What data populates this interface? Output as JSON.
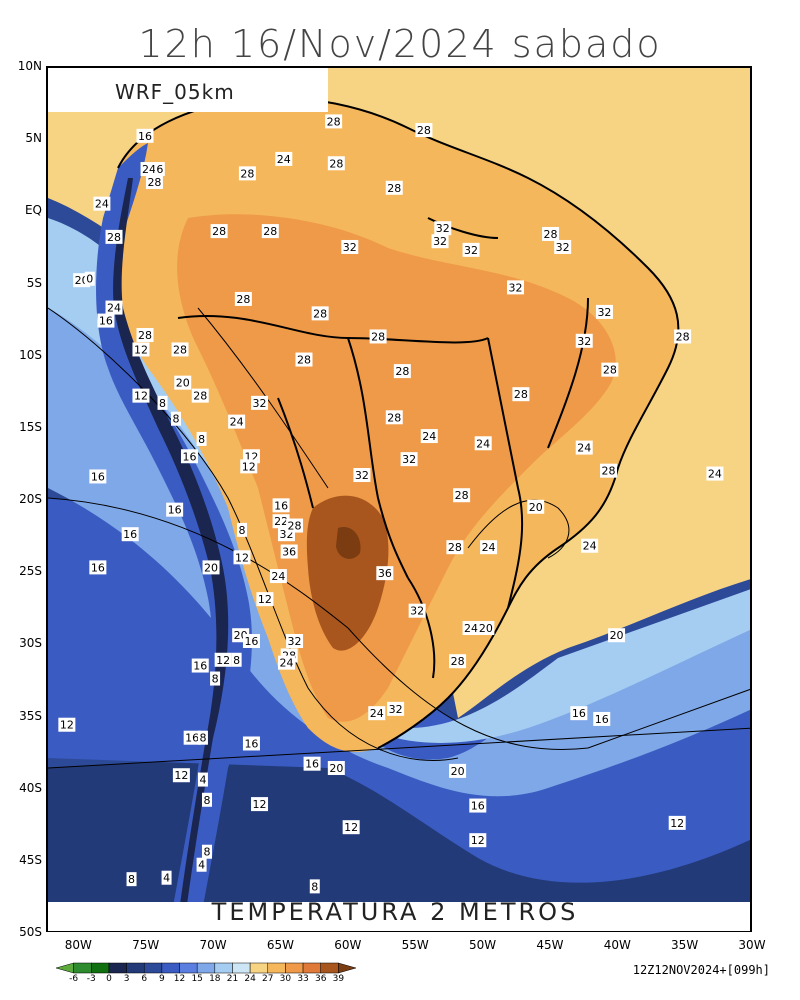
{
  "title": "12h 16/Nov/2024 sabado",
  "model": "WRF_05km",
  "variable": "TEMPERATURA 2 METROS",
  "init_info": "12Z12NOV2024+[099h]",
  "lat_labels": [
    "10N",
    "5N",
    "EQ",
    "5S",
    "10S",
    "15S",
    "20S",
    "25S",
    "30S",
    "35S",
    "40S",
    "45S",
    "50S"
  ],
  "lon_labels": [
    "80W",
    "75W",
    "70W",
    "65W",
    "60W",
    "55W",
    "50W",
    "45W",
    "40W",
    "35W",
    "30W"
  ],
  "colorbar": {
    "ticks": [
      "-6",
      "-3",
      "0",
      "3",
      "6",
      "9",
      "12",
      "15",
      "18",
      "21",
      "24",
      "27",
      "30",
      "33",
      "36",
      "39"
    ],
    "colors": [
      "#5daa3c",
      "#2e8b2e",
      "#107010",
      "#1a2550",
      "#233a78",
      "#2d4a99",
      "#3a5cc2",
      "#5b7fe0",
      "#7fa8e8",
      "#a5cdf2",
      "#cce6f5",
      "#f7d483",
      "#f5b75b",
      "#ef9a48",
      "#e07a3a",
      "#a8561e",
      "#7a3c10"
    ]
  },
  "contour_labels": [
    {
      "t": "16",
      "lon": -75.2,
      "lat": 5.3
    },
    {
      "t": "24",
      "lon": -74.9,
      "lat": 3.0
    },
    {
      "t": "6",
      "lon": -74.1,
      "lat": 3.0
    },
    {
      "t": "28",
      "lon": -74.5,
      "lat": 2.1
    },
    {
      "t": "24",
      "lon": -78.4,
      "lat": 0.6
    },
    {
      "t": "28",
      "lon": -77.5,
      "lat": -1.7
    },
    {
      "t": "20",
      "lon": -79.9,
      "lat": -4.7
    },
    {
      "t": "0",
      "lon": -79.3,
      "lat": -4.6
    },
    {
      "t": "24",
      "lon": -77.5,
      "lat": -6.6
    },
    {
      "t": "16",
      "lon": -78.1,
      "lat": -7.5
    },
    {
      "t": "28",
      "lon": -75.2,
      "lat": -8.5
    },
    {
      "t": "12",
      "lon": -75.5,
      "lat": -9.5
    },
    {
      "t": "28",
      "lon": -72.6,
      "lat": -9.5
    },
    {
      "t": "20",
      "lon": -72.4,
      "lat": -11.8
    },
    {
      "t": "28",
      "lon": -71.1,
      "lat": -12.7
    },
    {
      "t": "12",
      "lon": -75.5,
      "lat": -12.7
    },
    {
      "t": "8",
      "lon": -73.9,
      "lat": -13.2
    },
    {
      "t": "8",
      "lon": -72.9,
      "lat": -14.3
    },
    {
      "t": "24",
      "lon": -68.4,
      "lat": -14.5
    },
    {
      "t": "32",
      "lon": -66.7,
      "lat": -13.2
    },
    {
      "t": "8",
      "lon": -71.0,
      "lat": -15.7
    },
    {
      "t": "16",
      "lon": -71.9,
      "lat": -16.9
    },
    {
      "t": "12",
      "lon": -67.3,
      "lat": -16.9
    },
    {
      "t": "12",
      "lon": -67.5,
      "lat": -17.6
    },
    {
      "t": "16",
      "lon": -78.7,
      "lat": -18.3
    },
    {
      "t": "16",
      "lon": -73.0,
      "lat": -20.6
    },
    {
      "t": "16",
      "lon": -76.3,
      "lat": -22.3
    },
    {
      "t": "16",
      "lon": -78.7,
      "lat": -24.6
    },
    {
      "t": "16",
      "lon": -65.1,
      "lat": -20.3
    },
    {
      "t": "22",
      "lon": -65.1,
      "lat": -21.4
    },
    {
      "t": "32",
      "lon": -64.7,
      "lat": -22.3
    },
    {
      "t": "8",
      "lon": -68.0,
      "lat": -22.0
    },
    {
      "t": "28",
      "lon": -64.1,
      "lat": -21.7
    },
    {
      "t": "36",
      "lon": -64.5,
      "lat": -23.5
    },
    {
      "t": "12",
      "lon": -68.0,
      "lat": -23.9
    },
    {
      "t": "20",
      "lon": -70.3,
      "lat": -24.6
    },
    {
      "t": "24",
      "lon": -65.3,
      "lat": -25.2
    },
    {
      "t": "12",
      "lon": -66.3,
      "lat": -26.8
    },
    {
      "t": "20",
      "lon": -68.1,
      "lat": -29.3
    },
    {
      "t": "16",
      "lon": -67.3,
      "lat": -29.7
    },
    {
      "t": "32",
      "lon": -64.1,
      "lat": -29.7
    },
    {
      "t": "28",
      "lon": -64.5,
      "lat": -30.7
    },
    {
      "t": "24",
      "lon": -64.7,
      "lat": -31.2
    },
    {
      "t": "12",
      "lon": -69.4,
      "lat": -31.0
    },
    {
      "t": "8",
      "lon": -68.4,
      "lat": -31.0
    },
    {
      "t": "16",
      "lon": -71.1,
      "lat": -31.4
    },
    {
      "t": "8",
      "lon": -70.0,
      "lat": -32.3
    },
    {
      "t": "12",
      "lon": -81.0,
      "lat": -35.5
    },
    {
      "t": "16",
      "lon": -71.7,
      "lat": -36.4
    },
    {
      "t": "8",
      "lon": -70.9,
      "lat": -36.4
    },
    {
      "t": "16",
      "lon": -67.3,
      "lat": -36.8
    },
    {
      "t": "16",
      "lon": -62.8,
      "lat": -38.2
    },
    {
      "t": "20",
      "lon": -61.0,
      "lat": -38.5
    },
    {
      "t": "12",
      "lon": -72.5,
      "lat": -39.0
    },
    {
      "t": "4",
      "lon": -70.9,
      "lat": -39.3
    },
    {
      "t": "8",
      "lon": -70.6,
      "lat": -40.7
    },
    {
      "t": "12",
      "lon": -66.7,
      "lat": -41.0
    },
    {
      "t": "12",
      "lon": -59.9,
      "lat": -42.6
    },
    {
      "t": "8",
      "lon": -70.6,
      "lat": -44.3
    },
    {
      "t": "4",
      "lon": -71.0,
      "lat": -45.2
    },
    {
      "t": "4",
      "lon": -73.6,
      "lat": -46.1
    },
    {
      "t": "8",
      "lon": -76.2,
      "lat": -46.2
    },
    {
      "t": "8",
      "lon": -62.6,
      "lat": -46.7
    },
    {
      "t": "28",
      "lon": -61.2,
      "lat": 6.3
    },
    {
      "t": "24",
      "lon": -64.9,
      "lat": 3.7
    },
    {
      "t": "28",
      "lon": -61.0,
      "lat": 3.4
    },
    {
      "t": "28",
      "lon": -67.6,
      "lat": 2.7
    },
    {
      "t": "28",
      "lon": -54.5,
      "lat": 5.7
    },
    {
      "t": "28",
      "lon": -56.7,
      "lat": 1.7
    },
    {
      "t": "28",
      "lon": -69.7,
      "lat": -1.3
    },
    {
      "t": "28",
      "lon": -65.9,
      "lat": -1.3
    },
    {
      "t": "32",
      "lon": -60.0,
      "lat": -2.4
    },
    {
      "t": "32",
      "lon": -53.1,
      "lat": -1.1
    },
    {
      "t": "32",
      "lon": -53.3,
      "lat": -2.0
    },
    {
      "t": "32",
      "lon": -51.0,
      "lat": -2.6
    },
    {
      "t": "28",
      "lon": -45.1,
      "lat": -1.5
    },
    {
      "t": "32",
      "lon": -44.2,
      "lat": -2.4
    },
    {
      "t": "32",
      "lon": -47.7,
      "lat": -5.2
    },
    {
      "t": "28",
      "lon": -67.9,
      "lat": -6.0
    },
    {
      "t": "28",
      "lon": -62.2,
      "lat": -7.0
    },
    {
      "t": "32",
      "lon": -41.1,
      "lat": -6.9
    },
    {
      "t": "28",
      "lon": -35.3,
      "lat": -8.6
    },
    {
      "t": "28",
      "lon": -57.9,
      "lat": -8.6
    },
    {
      "t": "32",
      "lon": -42.6,
      "lat": -8.9
    },
    {
      "t": "28",
      "lon": -63.4,
      "lat": -10.2
    },
    {
      "t": "28",
      "lon": -56.1,
      "lat": -11.0
    },
    {
      "t": "28",
      "lon": -40.7,
      "lat": -10.9
    },
    {
      "t": "28",
      "lon": -47.3,
      "lat": -12.6
    },
    {
      "t": "28",
      "lon": -56.7,
      "lat": -14.2
    },
    {
      "t": "24",
      "lon": -54.1,
      "lat": -15.5
    },
    {
      "t": "24",
      "lon": -50.1,
      "lat": -16.0
    },
    {
      "t": "24",
      "lon": -42.6,
      "lat": -16.3
    },
    {
      "t": "32",
      "lon": -55.6,
      "lat": -17.1
    },
    {
      "t": "32",
      "lon": -59.1,
      "lat": -18.2
    },
    {
      "t": "28",
      "lon": -40.8,
      "lat": -17.9
    },
    {
      "t": "24",
      "lon": -32.9,
      "lat": -18.1
    },
    {
      "t": "28",
      "lon": -51.7,
      "lat": -19.6
    },
    {
      "t": "20",
      "lon": -46.2,
      "lat": -20.4
    },
    {
      "t": "28",
      "lon": -52.2,
      "lat": -23.2
    },
    {
      "t": "24",
      "lon": -49.7,
      "lat": -23.2
    },
    {
      "t": "24",
      "lon": -42.2,
      "lat": -23.1
    },
    {
      "t": "36",
      "lon": -57.4,
      "lat": -25.0
    },
    {
      "t": "32",
      "lon": -55.0,
      "lat": -27.6
    },
    {
      "t": "24",
      "lon": -51.0,
      "lat": -28.8
    },
    {
      "t": "20",
      "lon": -49.9,
      "lat": -28.8
    },
    {
      "t": "20",
      "lon": -40.2,
      "lat": -29.3
    },
    {
      "t": "28",
      "lon": -52.0,
      "lat": -31.1
    },
    {
      "t": "24",
      "lon": -58.0,
      "lat": -34.7
    },
    {
      "t": "32",
      "lon": -56.6,
      "lat": -34.4
    },
    {
      "t": "16",
      "lon": -43.0,
      "lat": -34.7
    },
    {
      "t": "16",
      "lon": -41.3,
      "lat": -35.1
    },
    {
      "t": "20",
      "lon": -52.0,
      "lat": -38.7
    },
    {
      "t": "16",
      "lon": -50.5,
      "lat": -41.1
    },
    {
      "t": "12",
      "lon": -50.5,
      "lat": -43.5
    },
    {
      "t": "12",
      "lon": -35.7,
      "lat": -42.3
    }
  ]
}
